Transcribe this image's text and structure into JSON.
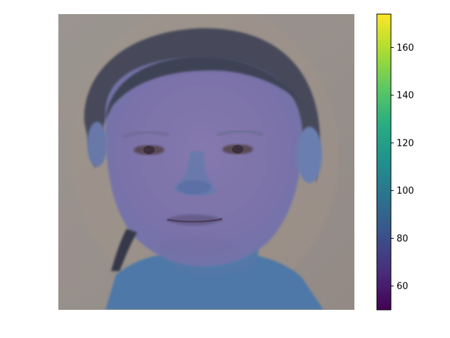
{
  "figure": {
    "colormap": "viridis",
    "colormap_stops": [
      "#440154",
      "#472c7a",
      "#3b518b",
      "#2c718e",
      "#21908d",
      "#27ad81",
      "#5cc863",
      "#aadc32",
      "#fde725"
    ]
  },
  "colorbar": {
    "range": [
      50,
      174
    ],
    "tick_labels": [
      "60",
      "80",
      "100",
      "120",
      "140",
      "160"
    ],
    "tick_values": [
      60,
      80,
      100,
      120,
      140,
      160
    ]
  }
}
